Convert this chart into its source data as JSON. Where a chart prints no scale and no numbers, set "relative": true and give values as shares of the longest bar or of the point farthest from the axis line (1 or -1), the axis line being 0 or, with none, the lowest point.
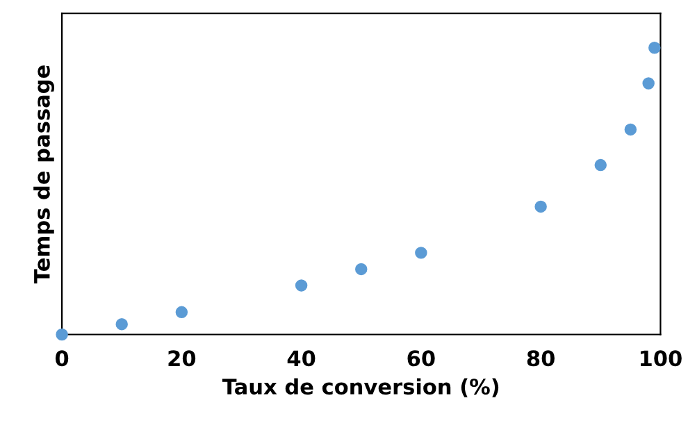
{
  "chart_data": {
    "type": "scatter",
    "xlabel": "Taux de conversion (%)",
    "ylabel": "Temps de passage",
    "relative": true,
    "x": [
      0,
      10,
      20,
      40,
      50,
      60,
      80,
      90,
      95,
      98,
      99
    ],
    "series": [
      {
        "color": "#5b9bd5",
        "values": [
          0,
          0.036,
          0.078,
          0.171,
          0.228,
          0.285,
          0.446,
          0.591,
          0.715,
          0.876,
          1
        ]
      }
    ],
    "xlim": [
      0,
      100
    ],
    "xticks": [
      0,
      20,
      40,
      60,
      80,
      100
    ],
    "marker": "circle",
    "grid": false,
    "legend": false
  }
}
